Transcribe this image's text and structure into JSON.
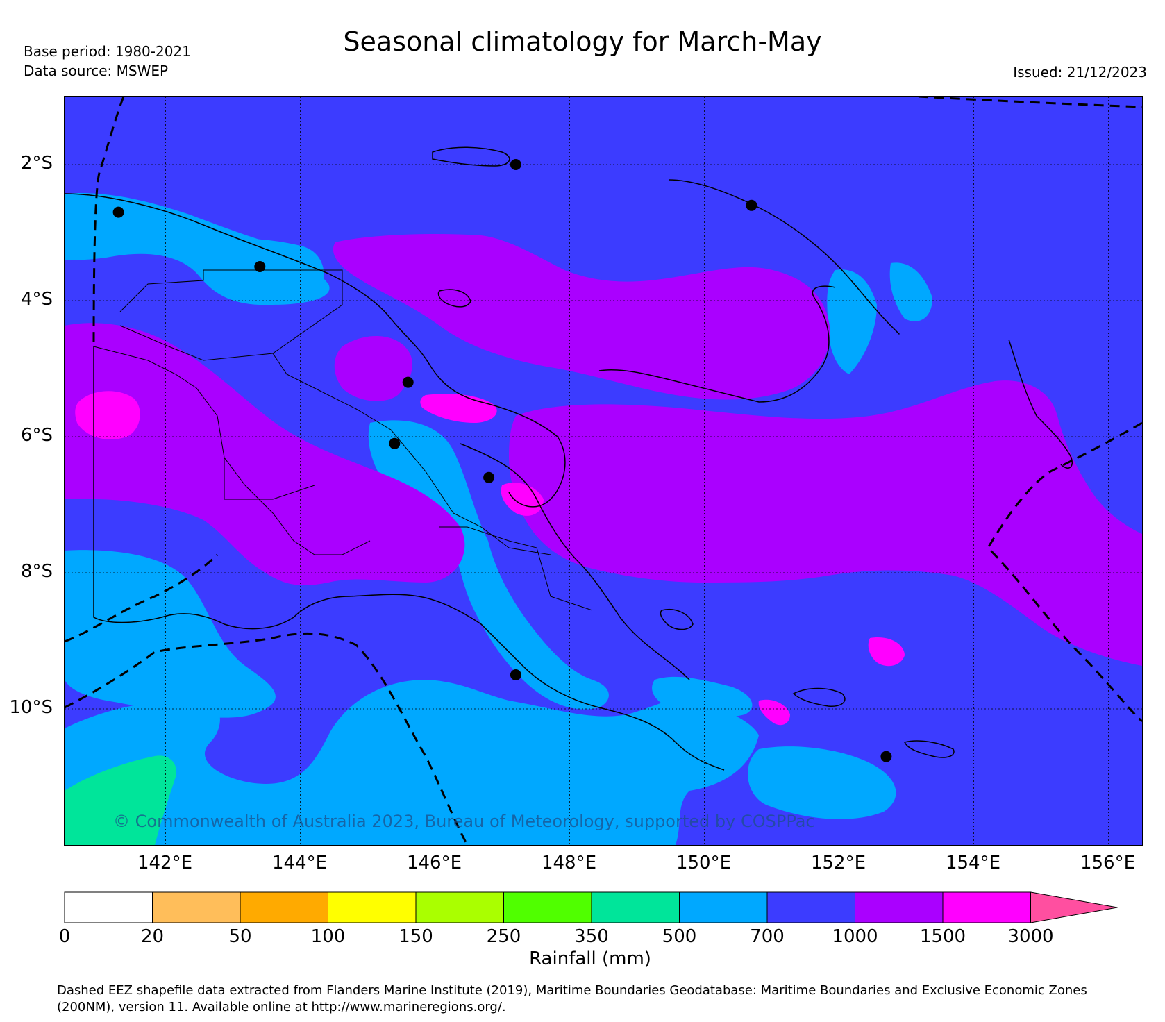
{
  "header": {
    "title": "Seasonal climatology for March-May",
    "base_period": "Base period: 1980-2021",
    "data_source": "Data source: MSWEP",
    "issued": "Issued: 21/12/2023"
  },
  "map": {
    "lat_labels": [
      "2°S",
      "4°S",
      "6°S",
      "8°S",
      "10°S"
    ],
    "lon_labels": [
      "142°E",
      "144°E",
      "146°E",
      "148°E",
      "150°E",
      "152°E",
      "154°E",
      "156°E"
    ],
    "lat_values": [
      -2,
      -4,
      -6,
      -8,
      -10
    ],
    "lon_values": [
      142,
      144,
      146,
      148,
      150,
      152,
      154,
      156
    ],
    "extent": {
      "lon_min": 140.5,
      "lon_max": 156.5,
      "lat_min": -12.0,
      "lat_max": -1.0
    },
    "grid": true,
    "copyright": "© Commonwealth of Australia 2023, Bureau of Meteorology, supported by COSPPac",
    "stations": [
      {
        "lon": 141.3,
        "lat": -2.7
      },
      {
        "lon": 143.4,
        "lat": -3.5
      },
      {
        "lon": 145.6,
        "lat": -5.2
      },
      {
        "lon": 145.4,
        "lat": -6.1
      },
      {
        "lon": 146.8,
        "lat": -6.6
      },
      {
        "lon": 147.2,
        "lat": -2.0
      },
      {
        "lon": 150.7,
        "lat": -2.6
      },
      {
        "lon": 147.2,
        "lat": -9.5
      },
      {
        "lon": 152.7,
        "lat": -10.7
      }
    ]
  },
  "colorbar": {
    "label": "Rainfall (mm)",
    "ticks": [
      "0",
      "20",
      "50",
      "100",
      "150",
      "250",
      "350",
      "500",
      "700",
      "1000",
      "1500",
      "3000"
    ],
    "colors": [
      "#ffffff",
      "#ffbe5a",
      "#ffaa00",
      "#ffff00",
      "#aaff00",
      "#50ff00",
      "#00e59a",
      "#00a8ff",
      "#3c3cff",
      "#aa00ff",
      "#ff00ff",
      "#ff4fa0"
    ]
  },
  "footer": {
    "line1": "Dashed EEZ shapefile data extracted from Flanders Marine Institute (2019), Maritime Boundaries Geodatabase: Maritime Boundaries and Exclusive Economic Zones",
    "line2": "(200NM), version 11. Available online at http://www.marineregions.org/."
  }
}
